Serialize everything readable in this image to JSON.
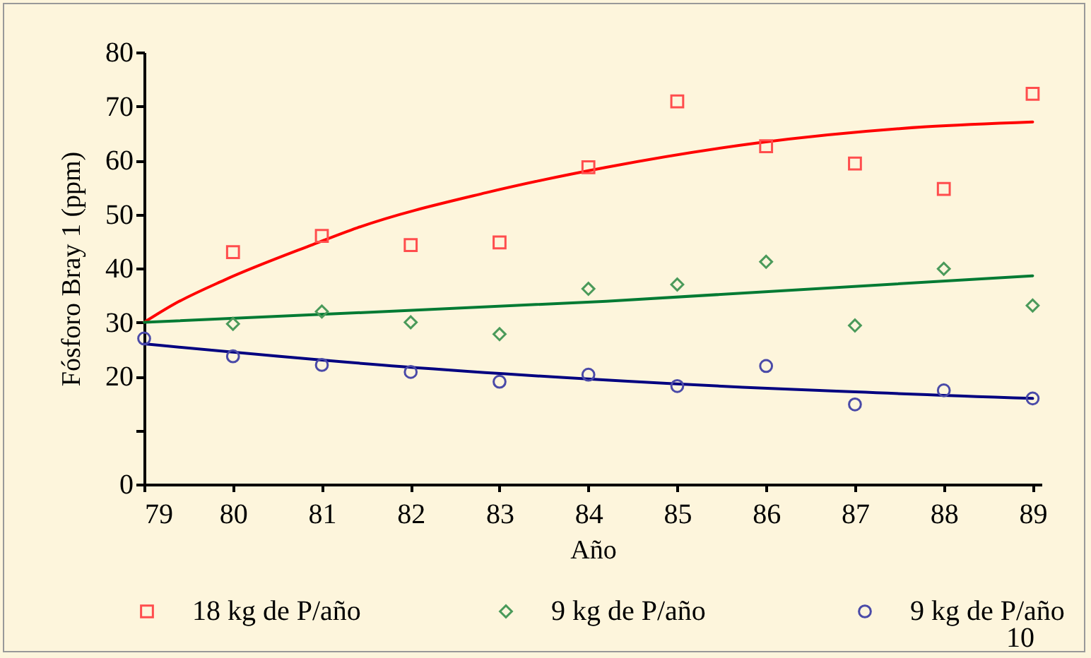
{
  "chart_data": {
    "type": "line",
    "xlabel": "Año",
    "ylabel": "Fósforo Bray 1 (ppm)",
    "xlim": [
      79,
      89.1
    ],
    "xticks": [
      79,
      80,
      81,
      82,
      83,
      84,
      85,
      86,
      87,
      88,
      89
    ],
    "ylim": [
      0,
      80
    ],
    "yticks": [
      0,
      {
        "value": 10,
        "label": null
      },
      20,
      30,
      40,
      50,
      60,
      70,
      80
    ],
    "grid": false,
    "legend": "bottom",
    "annotations": [
      "10"
    ],
    "series": [
      {
        "type": "line",
        "color": "#ff0000",
        "x": [
          79,
          79.33,
          79.9,
          80.9,
          81.4,
          82.85,
          84.2,
          85.9,
          87.8,
          89
        ],
        "values": [
          30,
          33.3,
          37.8,
          44.4,
          47.5,
          54,
          58.7,
          63.2,
          66.2,
          67.1
        ]
      },
      {
        "type": "line",
        "color": "#007a33",
        "x": [
          79,
          80.9,
          84.2,
          89
        ],
        "values": [
          30,
          31.4,
          33.9,
          38.6
        ]
      },
      {
        "type": "line",
        "color": "#000080",
        "x": [
          79,
          81.9,
          84.2,
          89
        ],
        "values": [
          26,
          21.8,
          19.3,
          15.9
        ]
      },
      {
        "type": "scatter",
        "name": "18 kg de P/año",
        "color": "#ff4d4d",
        "marker": "square",
        "x": [
          80,
          81,
          82,
          83,
          84,
          85,
          86,
          87,
          88,
          89
        ],
        "values": [
          43,
          46,
          44.3,
          44.8,
          58.7,
          70.9,
          62.6,
          59.4,
          54.7,
          72.3
        ]
      },
      {
        "type": "scatter",
        "name": "9 kg de P/año",
        "color": "#4a9a5a",
        "marker": "diamond",
        "x": [
          80,
          81,
          82,
          83,
          84,
          85,
          86,
          87,
          88,
          89
        ],
        "values": [
          29.7,
          32,
          30,
          27.8,
          36.2,
          37,
          41.2,
          29.4,
          39.9,
          33.1
        ]
      },
      {
        "type": "scatter",
        "name": "9 kg de P/año",
        "color": "#4a4aa8",
        "marker": "circle",
        "x": [
          79,
          80,
          81,
          82,
          83,
          84,
          85,
          86,
          87,
          88,
          89
        ],
        "values": [
          27,
          23.7,
          22.1,
          20.8,
          19,
          20.3,
          18.2,
          21.9,
          14.8,
          17.4,
          15.9
        ]
      }
    ]
  }
}
